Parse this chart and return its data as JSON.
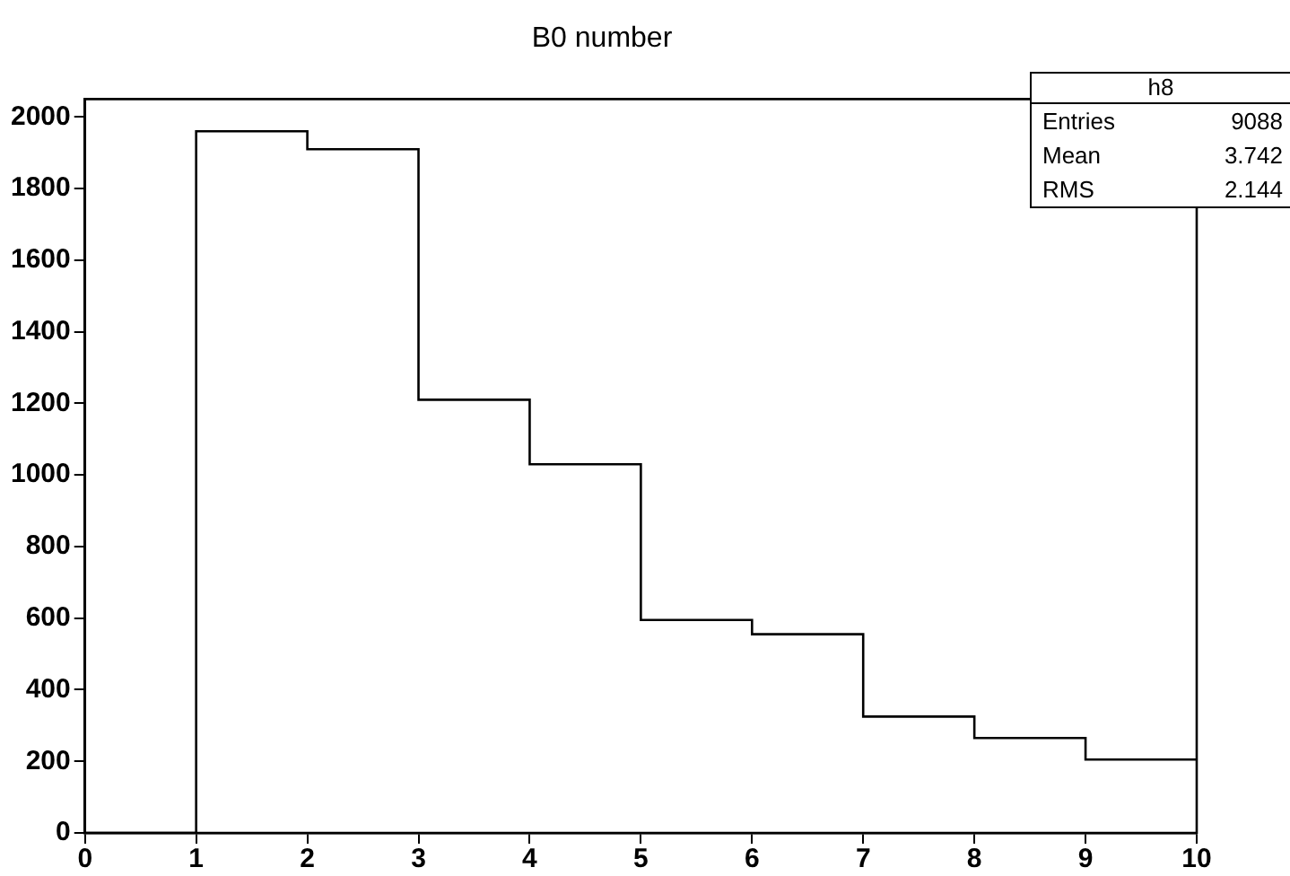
{
  "chart_data": {
    "type": "histogram",
    "title": "B0 number",
    "bins": [
      0,
      1,
      2,
      3,
      4,
      5,
      6,
      7,
      8,
      9,
      10
    ],
    "values": [
      0,
      1960,
      1910,
      1210,
      1030,
      595,
      555,
      325,
      265,
      205
    ],
    "color": "#000000",
    "xlim": [
      0,
      10
    ],
    "xticks": [
      0,
      1,
      2,
      3,
      4,
      5,
      6,
      7,
      8,
      9,
      10
    ],
    "ylim": [
      0,
      2050
    ],
    "yticks": [
      0,
      200,
      400,
      600,
      800,
      1000,
      1200,
      1400,
      1600,
      1800,
      2000
    ],
    "annotations": [
      "h8",
      "Entries",
      "9088",
      "Mean",
      "3.742",
      "RMS",
      "2.144"
    ]
  }
}
